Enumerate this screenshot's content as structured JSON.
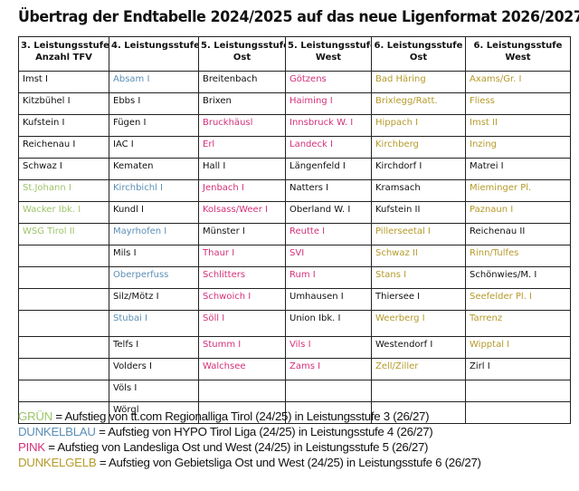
{
  "title": "Übertrag der Endtabelle 2024/2025 auf das neue Ligenformat 2026/2027",
  "colors": {
    "green": "#9dc46a",
    "blue": "#5b8fb5",
    "pink": "#d4307a",
    "yellow": "#b59a2a",
    "black": "#111111"
  },
  "table": {
    "headers": [
      {
        "line1": "3. Leistungsstufe",
        "line2": "Anzahl TFV"
      },
      {
        "line1": "4. Leistungsstufe",
        "line2": ""
      },
      {
        "line1": "5. Leistungsstufe",
        "line2": "Ost"
      },
      {
        "line1": "5. Leistungsstufe",
        "line2": "West"
      },
      {
        "line1": "6. Leistungsstufe",
        "line2": "Ost"
      },
      {
        "line1": "6. Leistungsstufe",
        "line2": "West"
      }
    ],
    "rows": [
      [
        {
          "t": "Imst I",
          "c": "black"
        },
        {
          "t": "Absam I",
          "c": "blue"
        },
        {
          "t": "Breitenbach",
          "c": "black"
        },
        {
          "t": "Götzens",
          "c": "pink"
        },
        {
          "t": "Bad Häring",
          "c": "yellow"
        },
        {
          "t": "Axams/Gr. I",
          "c": "yellow"
        }
      ],
      [
        {
          "t": "Kitzbühel I",
          "c": "black"
        },
        {
          "t": "Ebbs I",
          "c": "black"
        },
        {
          "t": "Brixen",
          "c": "black"
        },
        {
          "t": "Haiming I",
          "c": "pink"
        },
        {
          "t": "Brixlegg/Ratt.",
          "c": "yellow"
        },
        {
          "t": "Fliess",
          "c": "yellow"
        }
      ],
      [
        {
          "t": "Kufstein I",
          "c": "black"
        },
        {
          "t": "Fügen I",
          "c": "black"
        },
        {
          "t": "Bruckhäusl",
          "c": "pink"
        },
        {
          "t": "Innsbruck W. I",
          "c": "pink"
        },
        {
          "t": "Hippach I",
          "c": "yellow"
        },
        {
          "t": "Imst II",
          "c": "yellow"
        }
      ],
      [
        {
          "t": "Reichenau I",
          "c": "black"
        },
        {
          "t": "IAC I",
          "c": "black"
        },
        {
          "t": "Erl",
          "c": "pink"
        },
        {
          "t": "Landeck I",
          "c": "pink"
        },
        {
          "t": "Kirchberg",
          "c": "yellow"
        },
        {
          "t": "Inzing",
          "c": "yellow"
        }
      ],
      [
        {
          "t": "Schwaz I",
          "c": "black"
        },
        {
          "t": "Kematen",
          "c": "black"
        },
        {
          "t": "Hall I",
          "c": "black"
        },
        {
          "t": "Längenfeld I",
          "c": "black"
        },
        {
          "t": "Kirchdorf I",
          "c": "black"
        },
        {
          "t": "Matrei I",
          "c": "black"
        }
      ],
      [
        {
          "t": "St.Johann I",
          "c": "green"
        },
        {
          "t": "Kirchbichl I",
          "c": "blue"
        },
        {
          "t": "Jenbach I",
          "c": "pink"
        },
        {
          "t": "Natters I",
          "c": "black"
        },
        {
          "t": "Kramsach",
          "c": "black"
        },
        {
          "t": "Mieminger Pl.",
          "c": "yellow"
        }
      ],
      [
        {
          "t": "Wacker Ibk. I",
          "c": "green"
        },
        {
          "t": "Kundl I",
          "c": "black"
        },
        {
          "t": "Kolsass/Weer I",
          "c": "pink"
        },
        {
          "t": "Oberland W. I",
          "c": "black"
        },
        {
          "t": "Kufstein II",
          "c": "black"
        },
        {
          "t": "Paznaun I",
          "c": "yellow"
        }
      ],
      [
        {
          "t": "WSG Tirol II",
          "c": "green"
        },
        {
          "t": "Mayrhofen I",
          "c": "blue"
        },
        {
          "t": "Münster I",
          "c": "black"
        },
        {
          "t": "Reutte I",
          "c": "pink"
        },
        {
          "t": "Pillerseetal I",
          "c": "yellow"
        },
        {
          "t": "Reichenau II",
          "c": "black"
        }
      ],
      [
        {
          "t": "",
          "c": "black"
        },
        {
          "t": "Mils I",
          "c": "black"
        },
        {
          "t": "Thaur I",
          "c": "pink"
        },
        {
          "t": "SVI",
          "c": "pink"
        },
        {
          "t": "Schwaz II",
          "c": "yellow"
        },
        {
          "t": "Rinn/Tulfes",
          "c": "yellow"
        }
      ],
      [
        {
          "t": "",
          "c": "black"
        },
        {
          "t": "Oberperfuss",
          "c": "blue"
        },
        {
          "t": "Schlitters",
          "c": "pink"
        },
        {
          "t": "Rum I",
          "c": "pink"
        },
        {
          "t": "Stans I",
          "c": "yellow"
        },
        {
          "t": "Schönwies/M. I",
          "c": "black"
        }
      ],
      [
        {
          "t": "",
          "c": "black"
        },
        {
          "t": "Silz/Mötz I",
          "c": "black"
        },
        {
          "t": "Schwoich I",
          "c": "pink"
        },
        {
          "t": "Umhausen I",
          "c": "black"
        },
        {
          "t": "Thiersee I",
          "c": "black"
        },
        {
          "t": "Seefelder Pl. I",
          "c": "yellow"
        }
      ],
      [
        {
          "t": "",
          "c": "black"
        },
        {
          "t": "Stubai I",
          "c": "blue"
        },
        {
          "t": "Söll I",
          "c": "pink"
        },
        {
          "t": "Union Ibk. I",
          "c": "black"
        },
        {
          "t": "Weerberg I",
          "c": "yellow"
        },
        {
          "t": "Tarrenz",
          "c": "yellow"
        }
      ],
      [
        {
          "t": "",
          "c": "black"
        },
        {
          "t": "Telfs I",
          "c": "black"
        },
        {
          "t": "Stumm I",
          "c": "pink"
        },
        {
          "t": "Vils I",
          "c": "pink"
        },
        {
          "t": "Westendorf I",
          "c": "black"
        },
        {
          "t": "Wipptal I",
          "c": "yellow"
        }
      ],
      [
        {
          "t": "",
          "c": "black"
        },
        {
          "t": "Volders I",
          "c": "black"
        },
        {
          "t": "Walchsee",
          "c": "pink"
        },
        {
          "t": "Zams I",
          "c": "pink"
        },
        {
          "t": "Zell/Ziller",
          "c": "yellow"
        },
        {
          "t": "Zirl I",
          "c": "black"
        }
      ],
      [
        {
          "t": "",
          "c": "black"
        },
        {
          "t": "Völs I",
          "c": "black"
        },
        {
          "t": "",
          "c": "black"
        },
        {
          "t": "",
          "c": "black"
        },
        {
          "t": "",
          "c": "black"
        },
        {
          "t": "",
          "c": "black"
        }
      ],
      [
        {
          "t": "",
          "c": "black"
        },
        {
          "t": "Wörgl",
          "c": "black"
        },
        {
          "t": "",
          "c": "black"
        },
        {
          "t": "",
          "c": "black"
        },
        {
          "t": "",
          "c": "black"
        },
        {
          "t": "",
          "c": "black"
        }
      ]
    ]
  },
  "legend": [
    {
      "key": "GRÜN",
      "color": "green",
      "text": " = Aufstieg von tt.com Regionalliga Tirol (24/25) in Leistungsstufe 3 (26/27)"
    },
    {
      "key": "DUNKELBLAU",
      "color": "blue",
      "text": " = Aufstieg von HYPO Tirol Liga (24/25) in Leistungsstufe 4 (26/27)"
    },
    {
      "key": "PINK",
      "color": "pink",
      "text": " = Aufstieg von Landesliga Ost und West (24/25) in Leistungsstufe 5 (26/27)"
    },
    {
      "key": "DUNKELGELB",
      "color": "yellow",
      "text": " = Aufstieg von Gebietsliga Ost und West (24/25) in Leistungsstufe 6 (26/27)"
    }
  ]
}
